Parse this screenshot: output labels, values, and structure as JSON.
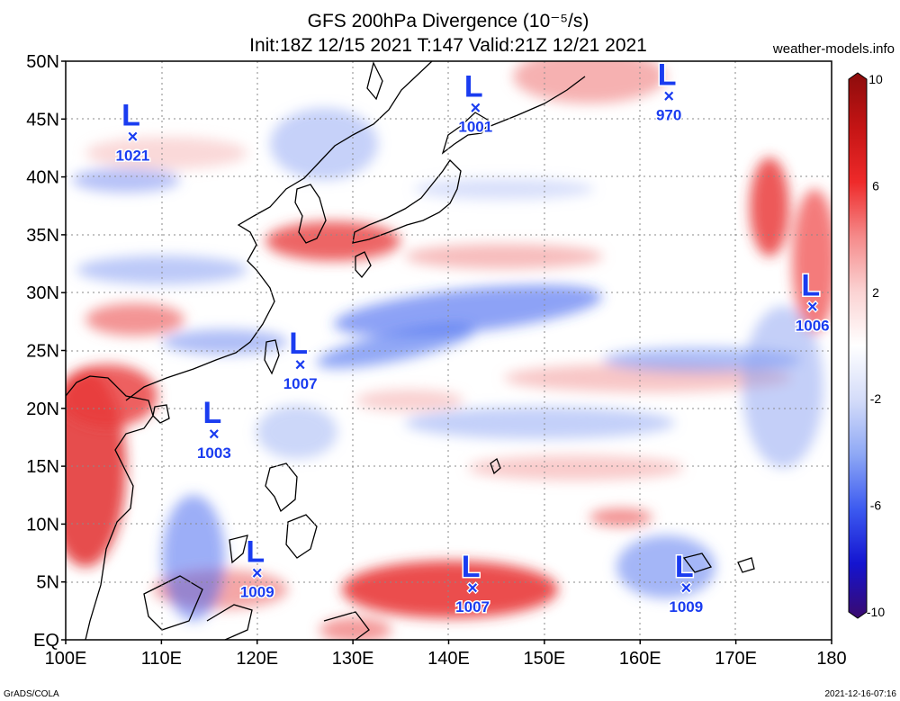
{
  "header": {
    "title_line1": "GFS 200hPa Divergence (10⁻⁵/s)",
    "title_line2": "Init:18Z 12/15 2021 T:147 Valid:21Z 12/21 2021",
    "site": "weather-models.info"
  },
  "map": {
    "lon_range": [
      100,
      180
    ],
    "lat_range": [
      0,
      50
    ],
    "lat_labels": [
      "50N",
      "45N",
      "40N",
      "35N",
      "30N",
      "25N",
      "20N",
      "15N",
      "10N",
      "5N",
      "EQ"
    ],
    "lon_labels": [
      "100E",
      "110E",
      "120E",
      "130E",
      "140E",
      "150E",
      "160E",
      "170E",
      "180"
    ],
    "grid": true
  },
  "pressure_lows": [
    {
      "symbol": "L",
      "mark": "×",
      "pressure": "1021",
      "lon": 107.0,
      "lat": 43.5
    },
    {
      "symbol": "L",
      "mark": "×",
      "pressure": "1001",
      "lon": 142.8,
      "lat": 46.0
    },
    {
      "symbol": "L",
      "mark": "×",
      "pressure": "970",
      "lon": 163.0,
      "lat": 47.0
    },
    {
      "symbol": "L",
      "mark": "×",
      "pressure": "1006",
      "lon": 178.0,
      "lat": 28.8
    },
    {
      "symbol": "L",
      "mark": "×",
      "pressure": "1007",
      "lon": 124.5,
      "lat": 23.8
    },
    {
      "symbol": "L",
      "mark": "×",
      "pressure": "1003",
      "lon": 115.5,
      "lat": 17.8
    },
    {
      "symbol": "L",
      "mark": "×",
      "pressure": "1009",
      "lon": 120.0,
      "lat": 5.8
    },
    {
      "symbol": "L",
      "mark": "×",
      "pressure": "1007",
      "lon": 142.5,
      "lat": 4.5
    },
    {
      "symbol": "L",
      "mark": "×",
      "pressure": "1009",
      "lon": 164.8,
      "lat": 4.5
    }
  ],
  "colorbar": {
    "labels": [
      "10",
      "6",
      "2",
      "-2",
      "-6",
      "-10"
    ],
    "min": -10,
    "max": 10,
    "colors": [
      "#3a0a6e",
      "#1414d0",
      "#3c5af0",
      "#8ea8f5",
      "#d4dcf9",
      "#ffffff",
      "#fbd2d2",
      "#f58a8a",
      "#ee2a2a",
      "#c41414",
      "#8c0c0c"
    ]
  },
  "footer": {
    "left": "GrADS/COLA",
    "right": "2021-12-16-07:16"
  }
}
